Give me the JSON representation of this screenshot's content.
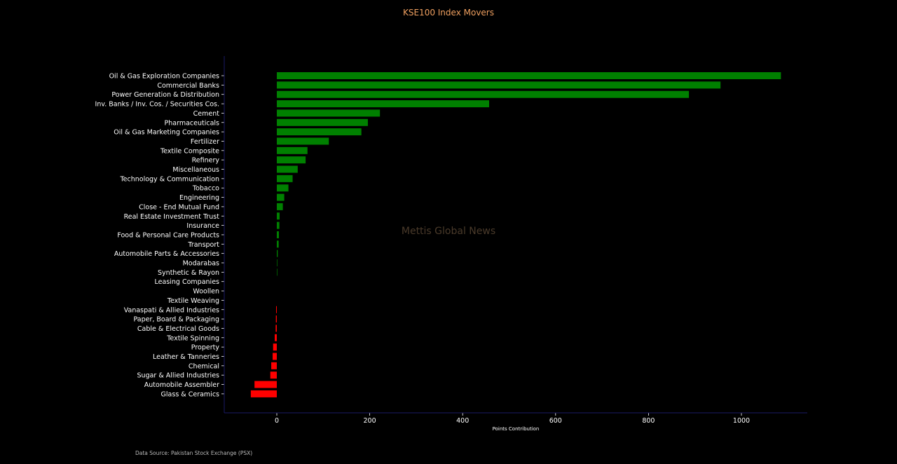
{
  "chart_data": {
    "type": "bar",
    "orientation": "horizontal",
    "title": "KSE100 Index Movers",
    "xlabel": "Points Contribution",
    "ylabel": "",
    "xlim": [
      -112,
      1140
    ],
    "xticks": [
      0,
      200,
      400,
      600,
      800,
      1000
    ],
    "grid": false,
    "colors": {
      "positive": "#008000",
      "negative": "#ff0000",
      "background": "#000000",
      "axis": "#1a1a66"
    },
    "categories": [
      "Oil & Gas Exploration Companies",
      "Commercial Banks",
      "Power Generation & Distribution",
      "Inv. Banks / Inv. Cos. / Securities Cos.",
      "Cement",
      "Pharmaceuticals",
      "Oil & Gas Marketing Companies",
      "Fertilizer",
      "Textile Composite",
      "Refinery",
      "Miscellaneous",
      "Technology & Communication",
      "Tobacco",
      "Engineering",
      "Close - End Mutual Fund",
      "Real Estate Investment Trust",
      "Insurance",
      "Food & Personal Care Products",
      "Transport",
      "Automobile Parts & Accessories",
      "Modarabas",
      "Synthetic & Rayon",
      "Leasing Companies",
      "Woollen",
      "Textile Weaving",
      "Vanaspati & Allied Industries",
      "Paper, Board & Packaging",
      "Cable & Electrical Goods",
      "Textile Spinning",
      "Property",
      "Leather & Tanneries",
      "Chemical",
      "Sugar & Allied Industries",
      "Automobile Assembler",
      "Glass & Ceramics"
    ],
    "values": [
      1085,
      955,
      887,
      457,
      222,
      196,
      182,
      112,
      66,
      62,
      45,
      34,
      25,
      16,
      13,
      6,
      5.5,
      4.5,
      4,
      2,
      1,
      1,
      0,
      0,
      0,
      -1.5,
      -2,
      -2.5,
      -4.5,
      -8,
      -9,
      -12,
      -14,
      -48,
      -56
    ],
    "watermark": "Mettis Global News",
    "source": "Data Source: Pakistan Stock Exchange (PSX)"
  }
}
